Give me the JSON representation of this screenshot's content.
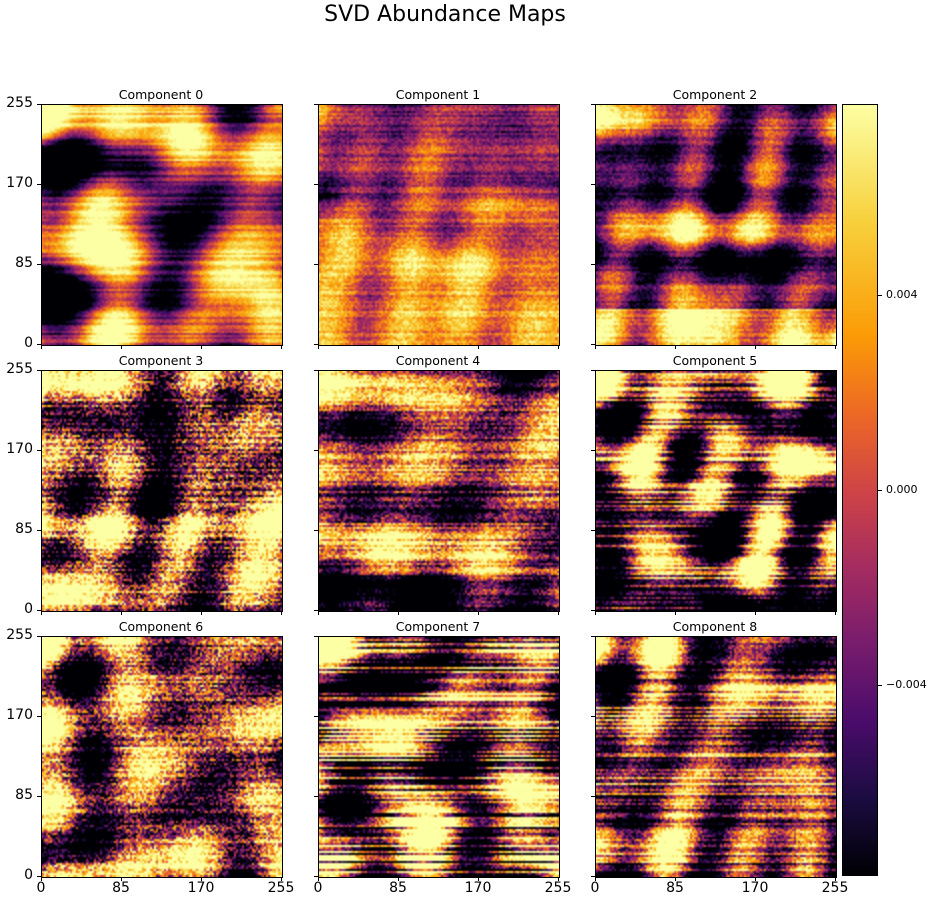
{
  "figure": {
    "title": "SVD Abundance Maps",
    "colormap": "inferno"
  },
  "chart_data": {
    "type": "heatmap",
    "title": "SVD Abundance Maps",
    "panels": [
      {
        "title": "Component 0",
        "pattern": "blobs-bright-network"
      },
      {
        "title": "Component 1",
        "pattern": "smooth-dark-top-bright-bottom"
      },
      {
        "title": "Component 2",
        "pattern": "dark-blobs-bright-bottom"
      },
      {
        "title": "Component 3",
        "pattern": "noisy-striped"
      },
      {
        "title": "Component 4",
        "pattern": "textured-dark-bottom-bands"
      },
      {
        "title": "Component 5",
        "pattern": "striped-network-dark-bottom-bands"
      },
      {
        "title": "Component 6",
        "pattern": "noisy-bright-network"
      },
      {
        "title": "Component 7",
        "pattern": "horizontal-bands"
      },
      {
        "title": "Component 8",
        "pattern": "striped-network"
      }
    ],
    "x_ticks": [
      "0",
      "85",
      "170",
      "255"
    ],
    "y_ticks": [
      "0",
      "85",
      "170",
      "255"
    ],
    "xlim": [
      0,
      255
    ],
    "ylim": [
      0,
      255
    ],
    "colorbar": {
      "ticks": [
        "0.004",
        "0.000",
        "−0.004"
      ],
      "tick_values": [
        0.004,
        0.0,
        -0.004
      ],
      "range": [
        -0.0079,
        0.0079
      ]
    }
  }
}
